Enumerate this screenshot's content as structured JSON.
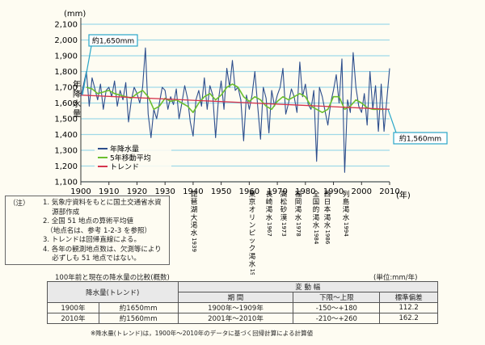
{
  "chart_data": {
    "type": "line",
    "ylabel": "年降水量",
    "yunit": "(mm)",
    "xunit": "(年)",
    "xlim": [
      1900,
      2010
    ],
    "ylim": [
      1100,
      2100
    ],
    "xticks": [
      1900,
      1910,
      1920,
      1930,
      1940,
      1950,
      1960,
      1970,
      1980,
      1990,
      2000,
      2010
    ],
    "yticks": [
      1100,
      1200,
      1300,
      1400,
      1500,
      1600,
      1700,
      1800,
      1900,
      2000,
      2100
    ],
    "grid": "horizontal",
    "legend": [
      "年降水量",
      "5年移動平均",
      "トレンド"
    ],
    "legend_position": "lower-left",
    "colors": {
      "annual": "#2e4e8c",
      "moving": "#6bbf2e",
      "trend": "#d6344c",
      "grid": "#9fd8e8",
      "callout": "#2aa7c9"
    },
    "series": [
      {
        "name": "年降水量",
        "x": [
          1900,
          1901,
          1902,
          1903,
          1904,
          1905,
          1906,
          1907,
          1908,
          1909,
          1910,
          1911,
          1912,
          1913,
          1914,
          1915,
          1916,
          1917,
          1918,
          1919,
          1920,
          1921,
          1922,
          1923,
          1924,
          1925,
          1926,
          1927,
          1928,
          1929,
          1930,
          1931,
          1932,
          1933,
          1934,
          1935,
          1936,
          1937,
          1938,
          1939,
          1940,
          1941,
          1942,
          1943,
          1944,
          1945,
          1946,
          1947,
          1948,
          1949,
          1950,
          1951,
          1952,
          1953,
          1954,
          1955,
          1956,
          1957,
          1958,
          1959,
          1960,
          1961,
          1962,
          1963,
          1964,
          1965,
          1966,
          1967,
          1968,
          1969,
          1970,
          1971,
          1972,
          1973,
          1974,
          1975,
          1976,
          1977,
          1978,
          1979,
          1980,
          1981,
          1982,
          1983,
          1984,
          1985,
          1986,
          1987,
          1988,
          1989,
          1990,
          1991,
          1992,
          1993,
          1994,
          1995,
          1996,
          1997,
          1998,
          1999,
          2000,
          2001,
          2002,
          2003,
          2004,
          2005,
          2006,
          2007,
          2008,
          2009,
          2010
        ],
        "y": [
          1640,
          1720,
          1800,
          1580,
          1760,
          1690,
          1620,
          1720,
          1560,
          1680,
          1700,
          1640,
          1740,
          1580,
          1680,
          1620,
          1730,
          1480,
          1620,
          1700,
          1660,
          1600,
          1700,
          1950,
          1530,
          1380,
          1560,
          1500,
          1600,
          1700,
          1680,
          1560,
          1640,
          1590,
          1690,
          1500,
          1600,
          1710,
          1630,
          1480,
          1390,
          1620,
          1680,
          1580,
          1760,
          1560,
          1710,
          1650,
          1380,
          1620,
          1740,
          1560,
          1820,
          1700,
          1870,
          1680,
          1700,
          1620,
          1360,
          1650,
          1560,
          1650,
          1800,
          1580,
          1370,
          1700,
          1630,
          1410,
          1680,
          1580,
          1650,
          1700,
          1820,
          1530,
          1600,
          1690,
          1640,
          1540,
          1860,
          1640,
          1720,
          1590,
          1560,
          1680,
          1230,
          1700,
          1640,
          1550,
          1460,
          1600,
          1680,
          1780,
          1600,
          1880,
          1160,
          1620,
          1540,
          1920,
          1700,
          1580,
          1540,
          1660,
          1460,
          1800,
          1560,
          1710,
          1420,
          1720,
          1420,
          1620,
          1820
        ]
      },
      {
        "name": "5年移動平均",
        "x": [
          1902,
          1904,
          1906,
          1908,
          1910,
          1912,
          1914,
          1916,
          1918,
          1920,
          1922,
          1924,
          1926,
          1928,
          1930,
          1932,
          1934,
          1936,
          1938,
          1940,
          1942,
          1944,
          1946,
          1948,
          1950,
          1952,
          1954,
          1956,
          1958,
          1960,
          1962,
          1964,
          1966,
          1968,
          1970,
          1972,
          1974,
          1976,
          1978,
          1980,
          1982,
          1984,
          1986,
          1988,
          1990,
          1992,
          1994,
          1996,
          1998,
          2000,
          2002,
          2004,
          2006,
          2008
        ],
        "y": [
          1700,
          1690,
          1660,
          1670,
          1680,
          1660,
          1650,
          1640,
          1630,
          1660,
          1680,
          1640,
          1560,
          1580,
          1630,
          1610,
          1620,
          1600,
          1580,
          1540,
          1600,
          1640,
          1660,
          1620,
          1650,
          1700,
          1720,
          1700,
          1640,
          1610,
          1640,
          1620,
          1580,
          1560,
          1610,
          1640,
          1620,
          1640,
          1660,
          1640,
          1580,
          1560,
          1540,
          1560,
          1640,
          1640,
          1560,
          1580,
          1620,
          1600,
          1570,
          1560,
          1560,
          1560
        ]
      },
      {
        "name": "トレンド",
        "x": [
          1900,
          2010
        ],
        "y": [
          1650,
          1560
        ]
      }
    ],
    "annotations": {
      "start_callout": "約1,650mm",
      "end_callout": "約1,560mm",
      "events": [
        {
          "text": "琵琶湖大渇水",
          "year": "1939"
        },
        {
          "text": "東京オリンピック渇水",
          "year": "1964"
        },
        {
          "text": "長崎渇水",
          "year": "1967"
        },
        {
          "text": "高松砂漠",
          "year": "1973"
        },
        {
          "text": "福岡渇水",
          "year": "1978"
        },
        {
          "text": "全国的渇水",
          "year": "1984"
        },
        {
          "text": "西日本渇水",
          "year": "1986"
        },
        {
          "text": "列島渇水",
          "year": "1994"
        }
      ]
    }
  },
  "notes": {
    "head": "（注）",
    "items": [
      "1. 気象庁資料をもとに国土交通省水資",
      "　 源部作成",
      "2. 全国 51 地点の算術平均値",
      "　（地点名は、参考 1-2-3 を参照）",
      "3. トレンドは回帰直線による。",
      "4. 各年の観測地点数は、欠測等により",
      "　 必ずしも 51 地点ではない。"
    ]
  },
  "table": {
    "caption": "100年前と現在の降水量の比較(概数)",
    "unit": "(単位:mm/年)",
    "col_group": "変 動 幅",
    "headers": [
      "降水量(トレンド)",
      "期 間",
      "下限～上限",
      "標準偏差"
    ],
    "rows": [
      [
        "1900年",
        "約1650mm",
        "1900年～1909年",
        "-150～+180",
        "112.2"
      ],
      [
        "2010年",
        "約1560mm",
        "2001年～2010年",
        "-210～+260",
        "162.2"
      ]
    ],
    "footnote": "※降水量(トレンド)は，1900年～2010年のデータに基づく回帰計算による計算値"
  }
}
